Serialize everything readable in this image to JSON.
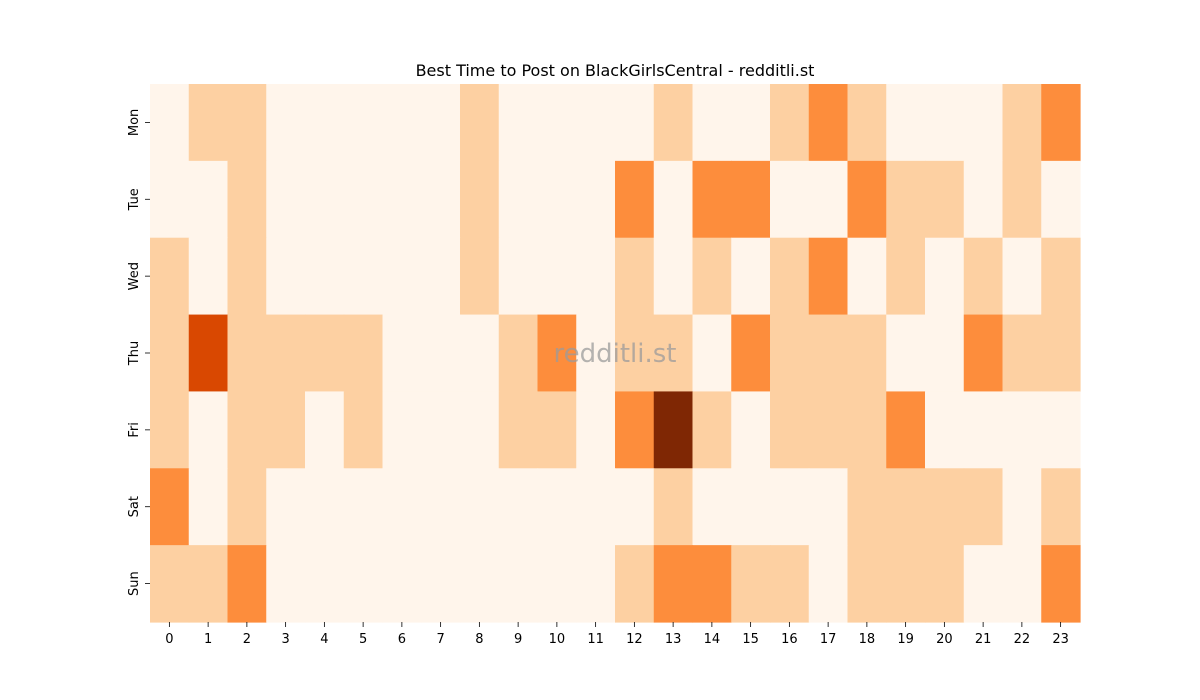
{
  "chart_data": {
    "type": "heatmap",
    "title": "Best Time to Post on BlackGirlsCentral - redditli.st",
    "watermark": "redditli.st",
    "x_labels": [
      "0",
      "1",
      "2",
      "3",
      "4",
      "5",
      "6",
      "7",
      "8",
      "9",
      "10",
      "11",
      "12",
      "13",
      "14",
      "15",
      "16",
      "17",
      "18",
      "19",
      "20",
      "21",
      "22",
      "23"
    ],
    "y_labels": [
      "Mon",
      "Tue",
      "Wed",
      "Thu",
      "Fri",
      "Sat",
      "Sun"
    ],
    "colormap": "Oranges",
    "vmin": 0,
    "vmax": 5,
    "values": [
      [
        0,
        1,
        1,
        0,
        0,
        0,
        0,
        0,
        1,
        0,
        0,
        0,
        0,
        1,
        0,
        0,
        1,
        2,
        1,
        0,
        0,
        0,
        1,
        2
      ],
      [
        0,
        0,
        1,
        0,
        0,
        0,
        0,
        0,
        1,
        0,
        0,
        0,
        2,
        0,
        2,
        2,
        0,
        0,
        2,
        1,
        1,
        0,
        1,
        0
      ],
      [
        1,
        0,
        1,
        0,
        0,
        0,
        0,
        0,
        1,
        0,
        0,
        0,
        1,
        0,
        1,
        0,
        1,
        2,
        0,
        1,
        0,
        1,
        0,
        1
      ],
      [
        1,
        3,
        1,
        1,
        1,
        1,
        0,
        0,
        0,
        1,
        2,
        0,
        1,
        1,
        0,
        2,
        1,
        1,
        1,
        0,
        0,
        2,
        1,
        1
      ],
      [
        1,
        0,
        1,
        1,
        0,
        1,
        0,
        0,
        0,
        1,
        1,
        0,
        2,
        5,
        1,
        0,
        1,
        1,
        1,
        2,
        0,
        0,
        0,
        0
      ],
      [
        2,
        0,
        1,
        0,
        0,
        0,
        0,
        0,
        0,
        0,
        0,
        0,
        0,
        1,
        0,
        0,
        0,
        0,
        1,
        1,
        1,
        1,
        0,
        1
      ],
      [
        1,
        1,
        2,
        0,
        0,
        0,
        0,
        0,
        0,
        0,
        0,
        0,
        1,
        2,
        2,
        1,
        1,
        0,
        1,
        1,
        1,
        0,
        0,
        2
      ]
    ],
    "level_colors": [
      "#fff5eb",
      "#fdd0a2",
      "#fd8d3c",
      "#d94801",
      "#a63603",
      "#7f2704"
    ]
  }
}
